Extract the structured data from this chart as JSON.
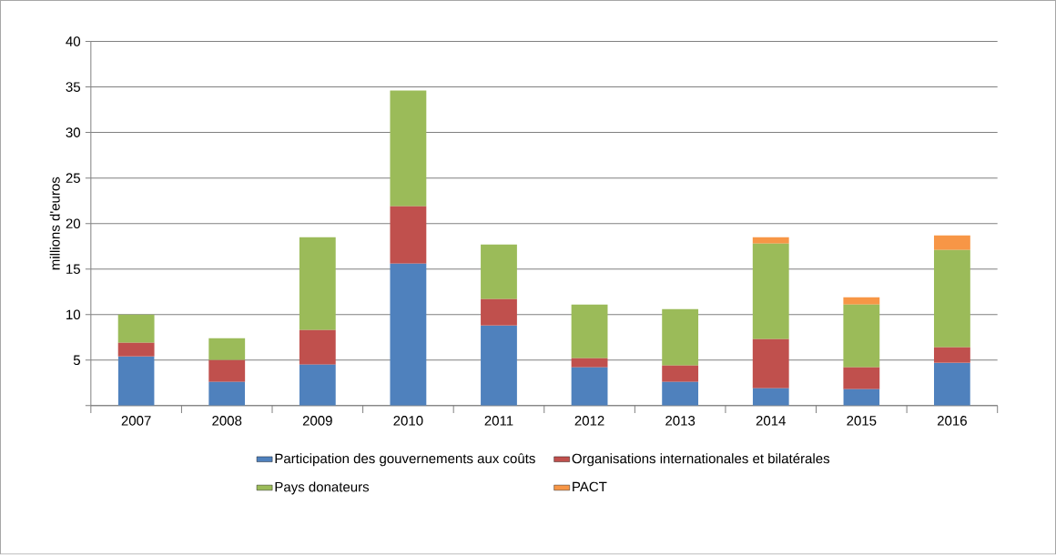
{
  "chart_data": {
    "type": "bar",
    "stacked": true,
    "ylabel": "millions d'euros",
    "categories": [
      "2007",
      "2008",
      "2009",
      "2010",
      "2011",
      "2012",
      "2013",
      "2014",
      "2015",
      "2016"
    ],
    "series": [
      {
        "name": "Participation des gouvernements aux coûts",
        "color": "#4f81bd",
        "values": [
          5.4,
          2.6,
          4.5,
          15.6,
          8.8,
          4.2,
          2.6,
          1.9,
          1.8,
          4.7
        ]
      },
      {
        "name": "Organisations internationales et bilatérales",
        "color": "#c0504d",
        "values": [
          1.5,
          2.4,
          3.8,
          6.3,
          2.9,
          1.0,
          1.8,
          5.4,
          2.4,
          1.7
        ]
      },
      {
        "name": "Pays donateurs",
        "color": "#9bbb59",
        "values": [
          3.1,
          2.4,
          10.2,
          12.7,
          6.0,
          5.9,
          6.2,
          10.5,
          6.9,
          10.7
        ]
      },
      {
        "name": "PACT",
        "color": "#f79646",
        "values": [
          null,
          null,
          null,
          null,
          null,
          null,
          null,
          0.7,
          0.8,
          1.6
        ]
      }
    ],
    "ylim": [
      0,
      40
    ],
    "yticks": [
      {
        "value": 0,
        "label": null
      },
      5,
      10,
      15,
      20,
      25,
      30,
      35,
      40
    ],
    "grid": "y",
    "legend": "bottom"
  }
}
